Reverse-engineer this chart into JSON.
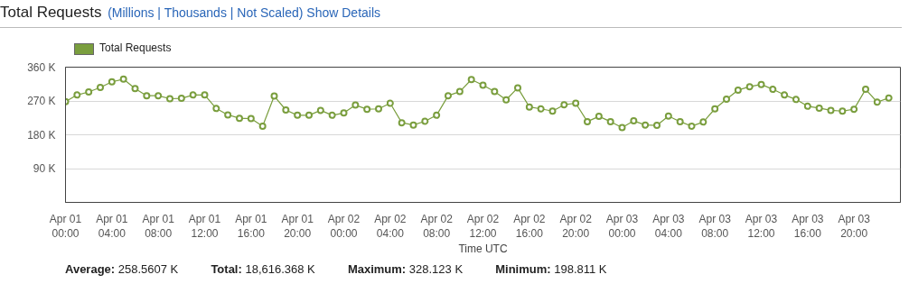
{
  "chart_data": {
    "type": "line",
    "title": "Total Requests",
    "subtitle": "(Millions | Thousands | Not Scaled)   Show Details",
    "xlabel": "Time UTC",
    "categories": [
      "Apr 01 00:00",
      null,
      null,
      null,
      "Apr 01 04:00",
      null,
      null,
      null,
      "Apr 01 08:00",
      null,
      null,
      null,
      "Apr 01 12:00",
      null,
      null,
      null,
      "Apr 01 16:00",
      null,
      null,
      null,
      "Apr 01 20:00",
      null,
      null,
      null,
      "Apr 02 00:00",
      null,
      null,
      null,
      "Apr 02 04:00",
      null,
      null,
      null,
      "Apr 02 08:00",
      null,
      null,
      null,
      "Apr 02 12:00",
      null,
      null,
      null,
      "Apr 02 16:00",
      null,
      null,
      null,
      "Apr 02 20:00",
      null,
      null,
      null,
      "Apr 03 00:00",
      null,
      null,
      null,
      "Apr 03 04:00",
      null,
      null,
      null,
      "Apr 03 08:00",
      null,
      null,
      null,
      "Apr 03 12:00",
      null,
      null,
      null,
      "Apr 03 16:00",
      null,
      null,
      null,
      "Apr 03 20:00",
      null,
      null,
      null
    ],
    "series": [
      {
        "name": "Total Requests",
        "color": "#7a9e3e",
        "values": [
          268,
          286,
          294,
          306,
          321,
          328,
          303,
          284,
          284,
          276,
          277,
          286,
          286,
          250,
          233,
          224,
          223,
          203,
          283,
          246,
          232,
          232,
          245,
          232,
          238,
          259,
          248,
          249,
          264,
          212,
          206,
          216,
          232,
          284,
          295,
          327,
          312,
          295,
          273,
          305,
          254,
          249,
          243,
          260,
          264,
          215,
          229,
          215,
          199,
          217,
          206,
          205,
          230,
          215,
          203,
          214,
          249,
          275,
          299,
          308,
          314,
          301,
          286,
          274,
          256,
          251,
          245,
          243,
          248,
          301,
          267,
          278
        ]
      }
    ],
    "ylim": [
      0,
      360
    ],
    "yticks": [
      {
        "value": 0,
        "label": null
      },
      {
        "value": 90,
        "label": "90 K"
      },
      {
        "value": 180,
        "label": "180 K"
      },
      {
        "value": 270,
        "label": "270 K"
      },
      {
        "value": 360,
        "label": "360 K"
      }
    ],
    "grid": "y",
    "legend": "top left",
    "marker": "circle",
    "line_style": "solid",
    "annotations": [
      "Average: 258.5607 K",
      "Total: 18,616.368 K",
      "Maximum: 328.123 K",
      "Minimum: 198.811 K"
    ]
  }
}
